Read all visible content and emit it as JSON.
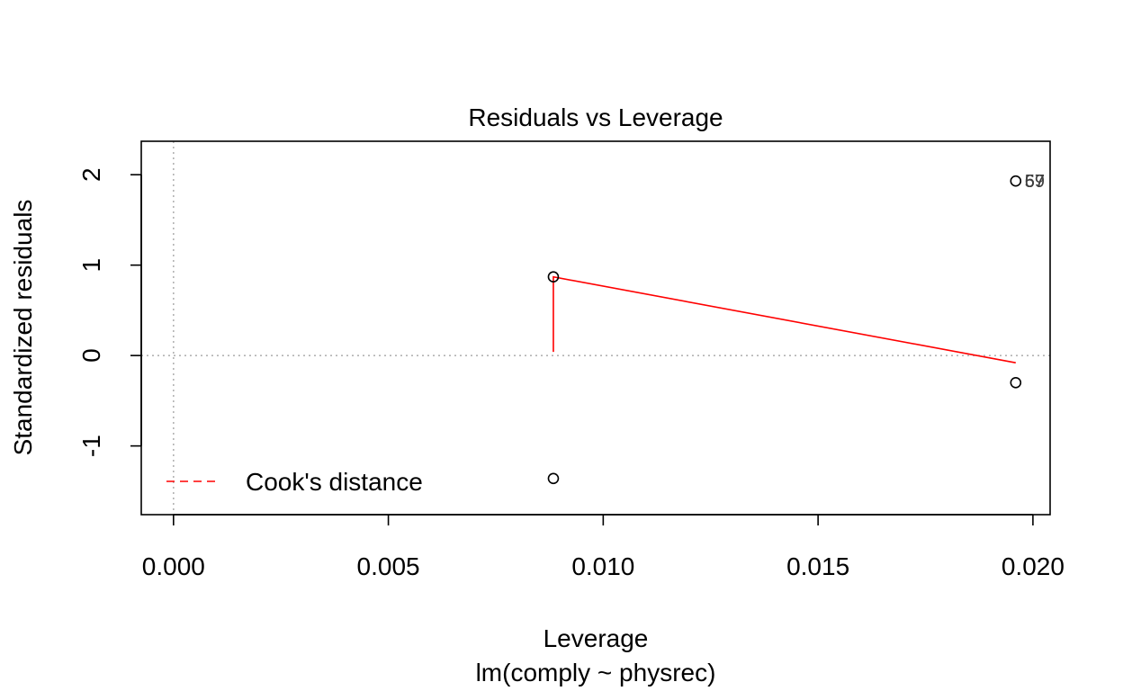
{
  "chart_data": {
    "type": "scatter",
    "title": "Residuals vs Leverage",
    "xlabel": "Leverage",
    "ylabel": "Standardized residuals",
    "subtitle": "lm(comply ~ physrec)",
    "xlim": [
      -0.00075,
      0.0204
    ],
    "ylim": [
      -1.76,
      2.37
    ],
    "x_ticks": [
      0.0,
      0.005,
      0.01,
      0.015,
      0.02
    ],
    "x_tick_labels": [
      "0.000",
      "0.005",
      "0.010",
      "0.015",
      "0.020"
    ],
    "y_ticks": [
      -1,
      0,
      1,
      2
    ],
    "y_tick_labels": [
      "-1",
      "0",
      "1",
      "2"
    ],
    "reference_lines": {
      "x": 0,
      "y": 0,
      "style": "dotted",
      "color": "#b3b3b3"
    },
    "points": [
      {
        "x": 0.00884,
        "y": 0.87
      },
      {
        "x": 0.00884,
        "y": -1.36
      },
      {
        "x": 0.0196,
        "y": 1.93
      },
      {
        "x": 0.0196,
        "y": -0.3
      }
    ],
    "point_labels": [
      {
        "x": 0.0196,
        "y": 1.93,
        "text": "67"
      },
      {
        "x": 0.0196,
        "y": 1.93,
        "text": "59"
      },
      {
        "x": 0.0196,
        "y": 1.93,
        "text": "57"
      }
    ],
    "smoother": {
      "color": "#ff0000",
      "x": [
        0.00884,
        0.00884,
        0.0196
      ],
      "y": [
        0.04,
        0.87,
        -0.08
      ]
    },
    "legend": {
      "position": "bottom-left",
      "entries": [
        {
          "label": "Cook's distance",
          "color": "#ff0000",
          "style": "dashed"
        }
      ]
    }
  }
}
